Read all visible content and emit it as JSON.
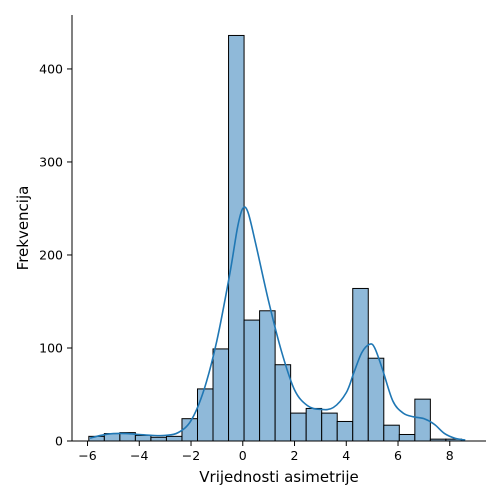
{
  "chart_data": {
    "type": "bar",
    "subtype": "histogram-with-kde",
    "title": "",
    "xlabel": "Vrijednosti asimetrije",
    "ylabel": "Frekvencija",
    "xlim": [
      -6.6,
      9.4
    ],
    "ylim": [
      0,
      458
    ],
    "xticks": [
      -6,
      -4,
      -2,
      0,
      2,
      4,
      6,
      8
    ],
    "yticks": [
      0,
      100,
      200,
      300,
      400
    ],
    "grid": false,
    "legend": "none",
    "colors": {
      "bar_fill": "#8fb9d9",
      "bar_edge": "#000000",
      "kde_line": "#1f77b4"
    },
    "bins": [
      {
        "start": -5.95,
        "end": -5.35,
        "count": 5
      },
      {
        "start": -5.35,
        "end": -4.75,
        "count": 8
      },
      {
        "start": -4.75,
        "end": -4.15,
        "count": 9
      },
      {
        "start": -4.15,
        "end": -3.55,
        "count": 6
      },
      {
        "start": -3.55,
        "end": -2.95,
        "count": 4
      },
      {
        "start": -2.95,
        "end": -2.35,
        "count": 5
      },
      {
        "start": -2.35,
        "end": -1.75,
        "count": 24
      },
      {
        "start": -1.75,
        "end": -1.15,
        "count": 56
      },
      {
        "start": -1.15,
        "end": -0.55,
        "count": 99
      },
      {
        "start": -0.55,
        "end": 0.05,
        "count": 436
      },
      {
        "start": 0.05,
        "end": 0.65,
        "count": 130
      },
      {
        "start": 0.65,
        "end": 1.25,
        "count": 140
      },
      {
        "start": 1.25,
        "end": 1.85,
        "count": 82
      },
      {
        "start": 1.85,
        "end": 2.45,
        "count": 30
      },
      {
        "start": 2.45,
        "end": 3.05,
        "count": 35
      },
      {
        "start": 3.05,
        "end": 3.65,
        "count": 30
      },
      {
        "start": 3.65,
        "end": 4.25,
        "count": 21
      },
      {
        "start": 4.25,
        "end": 4.85,
        "count": 164
      },
      {
        "start": 4.85,
        "end": 5.45,
        "count": 89
      },
      {
        "start": 5.45,
        "end": 6.05,
        "count": 17
      },
      {
        "start": 6.05,
        "end": 6.65,
        "count": 7
      },
      {
        "start": 6.65,
        "end": 7.25,
        "count": 45
      },
      {
        "start": 7.25,
        "end": 7.85,
        "count": 2
      },
      {
        "start": 7.85,
        "end": 8.45,
        "count": 2
      }
    ],
    "kde": {
      "x": [
        -5.9,
        -5.5,
        -5.0,
        -4.5,
        -4.0,
        -3.5,
        -3.0,
        -2.5,
        -2.0,
        -1.5,
        -1.0,
        -0.5,
        -0.2,
        0.0,
        0.2,
        0.5,
        1.0,
        1.5,
        2.0,
        2.5,
        3.0,
        3.5,
        4.0,
        4.3,
        4.6,
        4.9,
        5.1,
        5.4,
        5.8,
        6.2,
        6.6,
        7.0,
        7.4,
        7.8,
        8.2,
        8.6
      ],
      "y": [
        3,
        6,
        8,
        8,
        7,
        6,
        6,
        9,
        22,
        55,
        108,
        180,
        230,
        250,
        246,
        212,
        150,
        96,
        55,
        38,
        34,
        36,
        52,
        74,
        95,
        104,
        100,
        77,
        43,
        30,
        26,
        24,
        18,
        8,
        3,
        1
      ]
    }
  }
}
